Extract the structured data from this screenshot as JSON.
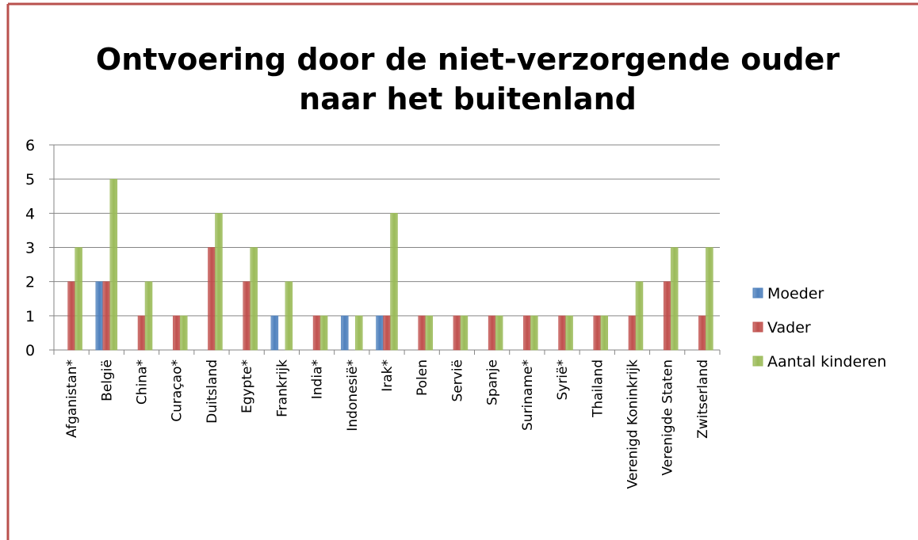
{
  "chart_data": {
    "type": "bar",
    "title": [
      "Ontvoering door de niet-verzorgende ouder",
      "naar het buitenland"
    ],
    "categories": [
      "Afganistan*",
      "België",
      "China*",
      "Curaçao*",
      "Duitsland",
      "Egypte*",
      "Frankrijk",
      "India*",
      "Indonesië*",
      "Irak*",
      "Polen",
      "Servië",
      "Spanje",
      "Suriname*",
      "Syrië*",
      "Thailand",
      "Verenigd Koninkrijk",
      "Verenigde Staten",
      "Zwitserland"
    ],
    "series": [
      {
        "name": "Moeder",
        "color": "#4f81bd",
        "values": [
          null,
          2,
          null,
          null,
          null,
          null,
          1,
          null,
          1,
          1,
          null,
          null,
          null,
          null,
          null,
          null,
          null,
          null,
          null
        ]
      },
      {
        "name": "Vader",
        "color": "#c0504d",
        "values": [
          2,
          2,
          1,
          1,
          3,
          2,
          null,
          1,
          null,
          1,
          1,
          1,
          1,
          1,
          1,
          1,
          1,
          2,
          1
        ]
      },
      {
        "name": "Aantal kinderen",
        "color": "#9bbb59",
        "values": [
          3,
          5,
          2,
          1,
          4,
          3,
          2,
          1,
          1,
          4,
          1,
          1,
          1,
          1,
          1,
          1,
          2,
          3,
          3
        ]
      }
    ],
    "ylim": [
      0,
      6
    ],
    "yticks": [
      0,
      1,
      2,
      3,
      4,
      5,
      6
    ],
    "grid": true,
    "legend": "right"
  }
}
